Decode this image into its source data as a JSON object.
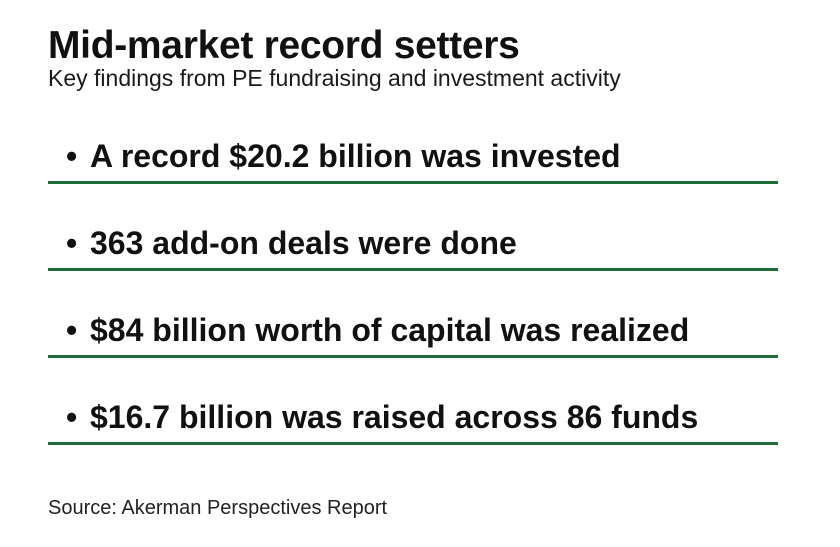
{
  "title": "Mid-market record setters",
  "subtitle": "Key findings from PE fundraising and investment activity",
  "findings": [
    {
      "bullet": "•",
      "text": "A record $20.2 billion was invested"
    },
    {
      "bullet": "•",
      "text": "363 add-on deals were done"
    },
    {
      "bullet": "•",
      "text": "$84 billion worth of capital was realized"
    },
    {
      "bullet": "•",
      "text": "$16.7 billion was raised across 86 funds"
    }
  ],
  "source": "Source: Akerman Perspectives Report",
  "colors": {
    "rule": "#1e6b3a",
    "text": "#111111",
    "background": "#ffffff"
  }
}
